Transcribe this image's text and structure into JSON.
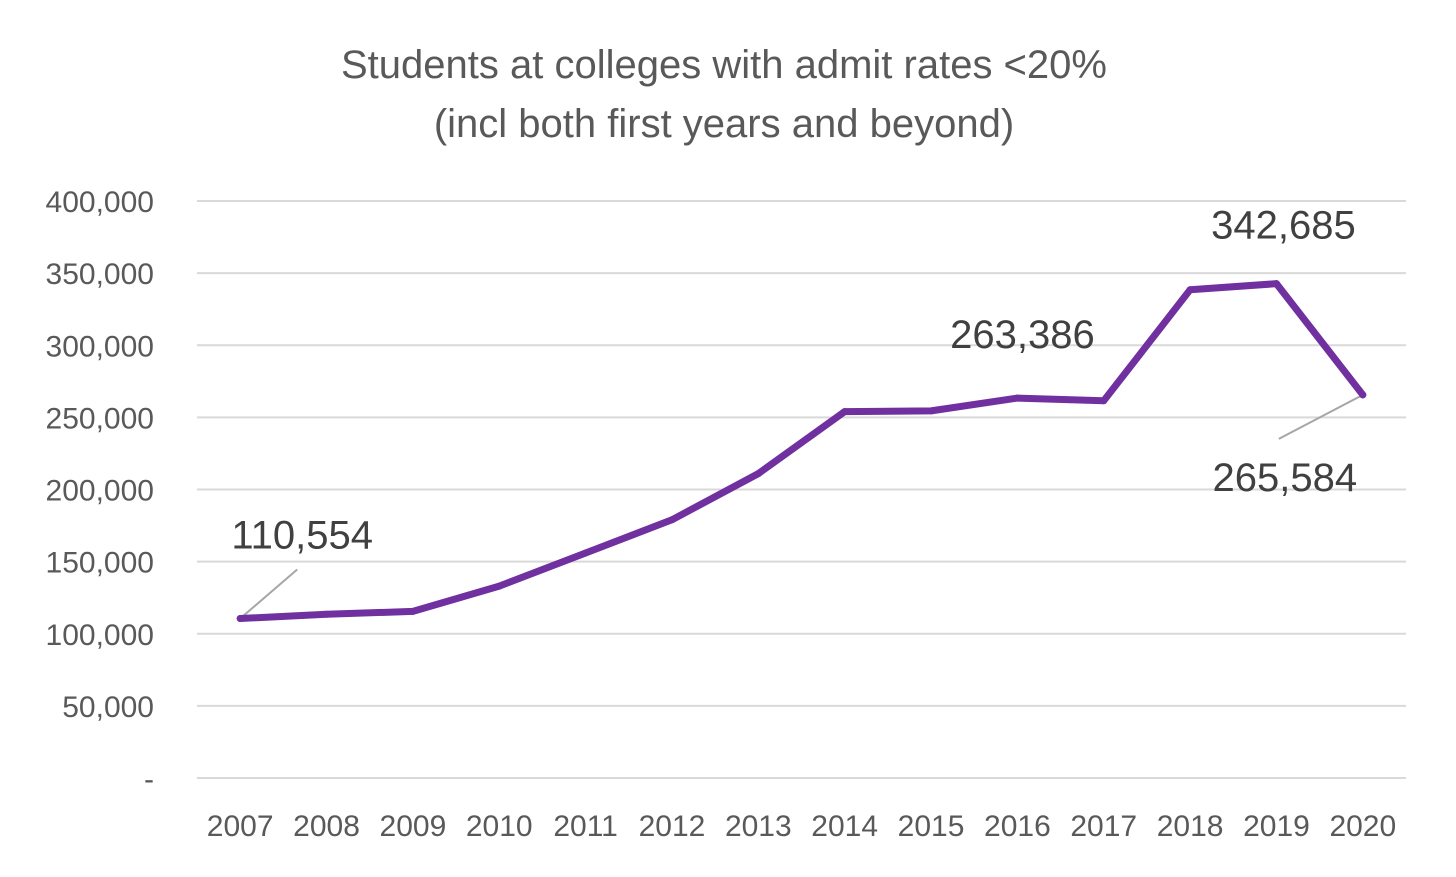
{
  "chart_data": {
    "type": "line",
    "title": "Students at colleges with admit rates <20%",
    "subtitle": "(incl both first years and beyond)",
    "xlabel": "",
    "ylabel": "",
    "x": [
      "2007",
      "2008",
      "2009",
      "2010",
      "2011",
      "2012",
      "2013",
      "2014",
      "2015",
      "2016",
      "2017",
      "2018",
      "2019",
      "2020"
    ],
    "series": [
      {
        "values": [
          110554,
          113500,
          115500,
          133000,
          156000,
          179000,
          211000,
          254000,
          254500,
          263386,
          261500,
          338500,
          342685,
          265584
        ]
      }
    ],
    "ylim": [
      0,
      400000
    ],
    "yticks": [
      0,
      50000,
      100000,
      150000,
      200000,
      250000,
      300000,
      350000,
      400000
    ],
    "ytick_labels": [
      "-",
      "50,000",
      "100,000",
      "150,000",
      "200,000",
      "250,000",
      "300,000",
      "350,000",
      "400,000"
    ],
    "grid": true,
    "legend": "none",
    "line_color": "#7030a0",
    "annotations": [
      {
        "x": "2007",
        "label": "110,554"
      },
      {
        "x": "2016",
        "label": "263,386"
      },
      {
        "x": "2019",
        "label": "342,685"
      },
      {
        "x": "2020",
        "label": "265,584"
      }
    ]
  }
}
